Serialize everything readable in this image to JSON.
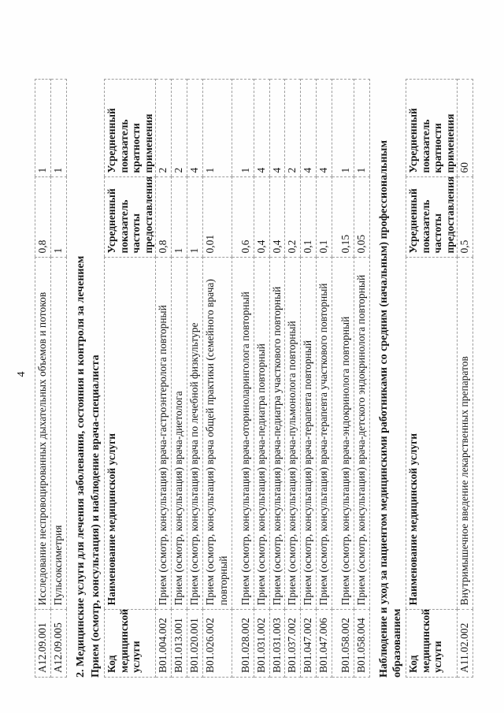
{
  "page": {
    "number": "4"
  },
  "table1": {
    "rows": [
      {
        "code": "А12.09.001",
        "name": "Исследование неспровоцированных дыхательных объемов и потоков",
        "frequency": "0,8",
        "multiplicity": "1"
      },
      {
        "code": "А12.09.005",
        "name": "Пульсоксиметрия",
        "frequency": "1",
        "multiplicity": "1"
      }
    ]
  },
  "section2": {
    "title": "2. Медицинские услуги для лечения заболевания, состояния и контроля за лечением",
    "subtitle": "Прием (осмотр, консультация) и наблюдение врача-специалиста"
  },
  "table_headers": {
    "code": "Код медицинской услуги",
    "name": "Наименование медицинской услуги",
    "frequency": "Усредненный показатель частоты предоставления",
    "multiplicity": "Усредненный показатель кратности применения"
  },
  "table2": {
    "rows": [
      {
        "code": "В01.004.002",
        "name": "Прием (осмотр, консультация) врача-гастроэнтеролога повторный",
        "frequency": "0,8",
        "multiplicity": "2"
      },
      {
        "code": "В01.013.001",
        "name": "Прием (осмотр, консультация) врача-диетолога",
        "frequency": "1",
        "multiplicity": "2"
      },
      {
        "code": "В01.020.001",
        "name": "Прием (осмотр, консультация) врача по лечебной физкультуре",
        "frequency": "1",
        "multiplicity": "4"
      },
      {
        "code": "В01.026.002",
        "name": "Прием (осмотр, консультация) врача общей практики (семейного врача) повторный",
        "frequency": "0,01",
        "multiplicity": "1"
      },
      {
        "code": "В01.028.002",
        "name": "Прием (осмотр, консультация) врача-оториноларинголога повторный",
        "frequency": "0,6",
        "multiplicity": "1"
      },
      {
        "code": "В01.031.002",
        "name": "Прием (осмотр, консультация) врача-педиатра повторный",
        "frequency": "0,4",
        "multiplicity": "4"
      },
      {
        "code": "В01.031.003",
        "name": "Прием (осмотр, консультация) врача-педиатра участкового повторный",
        "frequency": "0,4",
        "multiplicity": "4"
      },
      {
        "code": "В01.037.002",
        "name": "Прием (осмотр, консультация) врача-пульмонолога повторный",
        "frequency": "0,2",
        "multiplicity": "2"
      },
      {
        "code": "В01.047.002",
        "name": "Прием (осмотр, консультация) врача-терапевта повторный",
        "frequency": "0,1",
        "multiplicity": "4"
      },
      {
        "code": "В01.047.006",
        "name": "Прием (осмотр, консультация) врача-терапевта участкового повторный",
        "frequency": "0,1",
        "multiplicity": "4"
      },
      {
        "code": "В01.058.002",
        "name": "Прием (осмотр, консультация) врача-эндокринолога повторный",
        "frequency": "0,15",
        "multiplicity": "1"
      },
      {
        "code": "В01.058.004",
        "name": "Прием (осмотр, консультация) врача-детского эндокринолога повторный",
        "frequency": "0,05",
        "multiplicity": "1"
      }
    ]
  },
  "section3": {
    "title": "Наблюдение и уход за пациентом медицинскими работниками со средним (начальным) профессиональным образованием"
  },
  "table3": {
    "rows": [
      {
        "code": "А11.02.002",
        "name": "Внутримышечное введение лекарственных препаратов",
        "frequency": "0,5",
        "multiplicity": "60"
      }
    ]
  }
}
